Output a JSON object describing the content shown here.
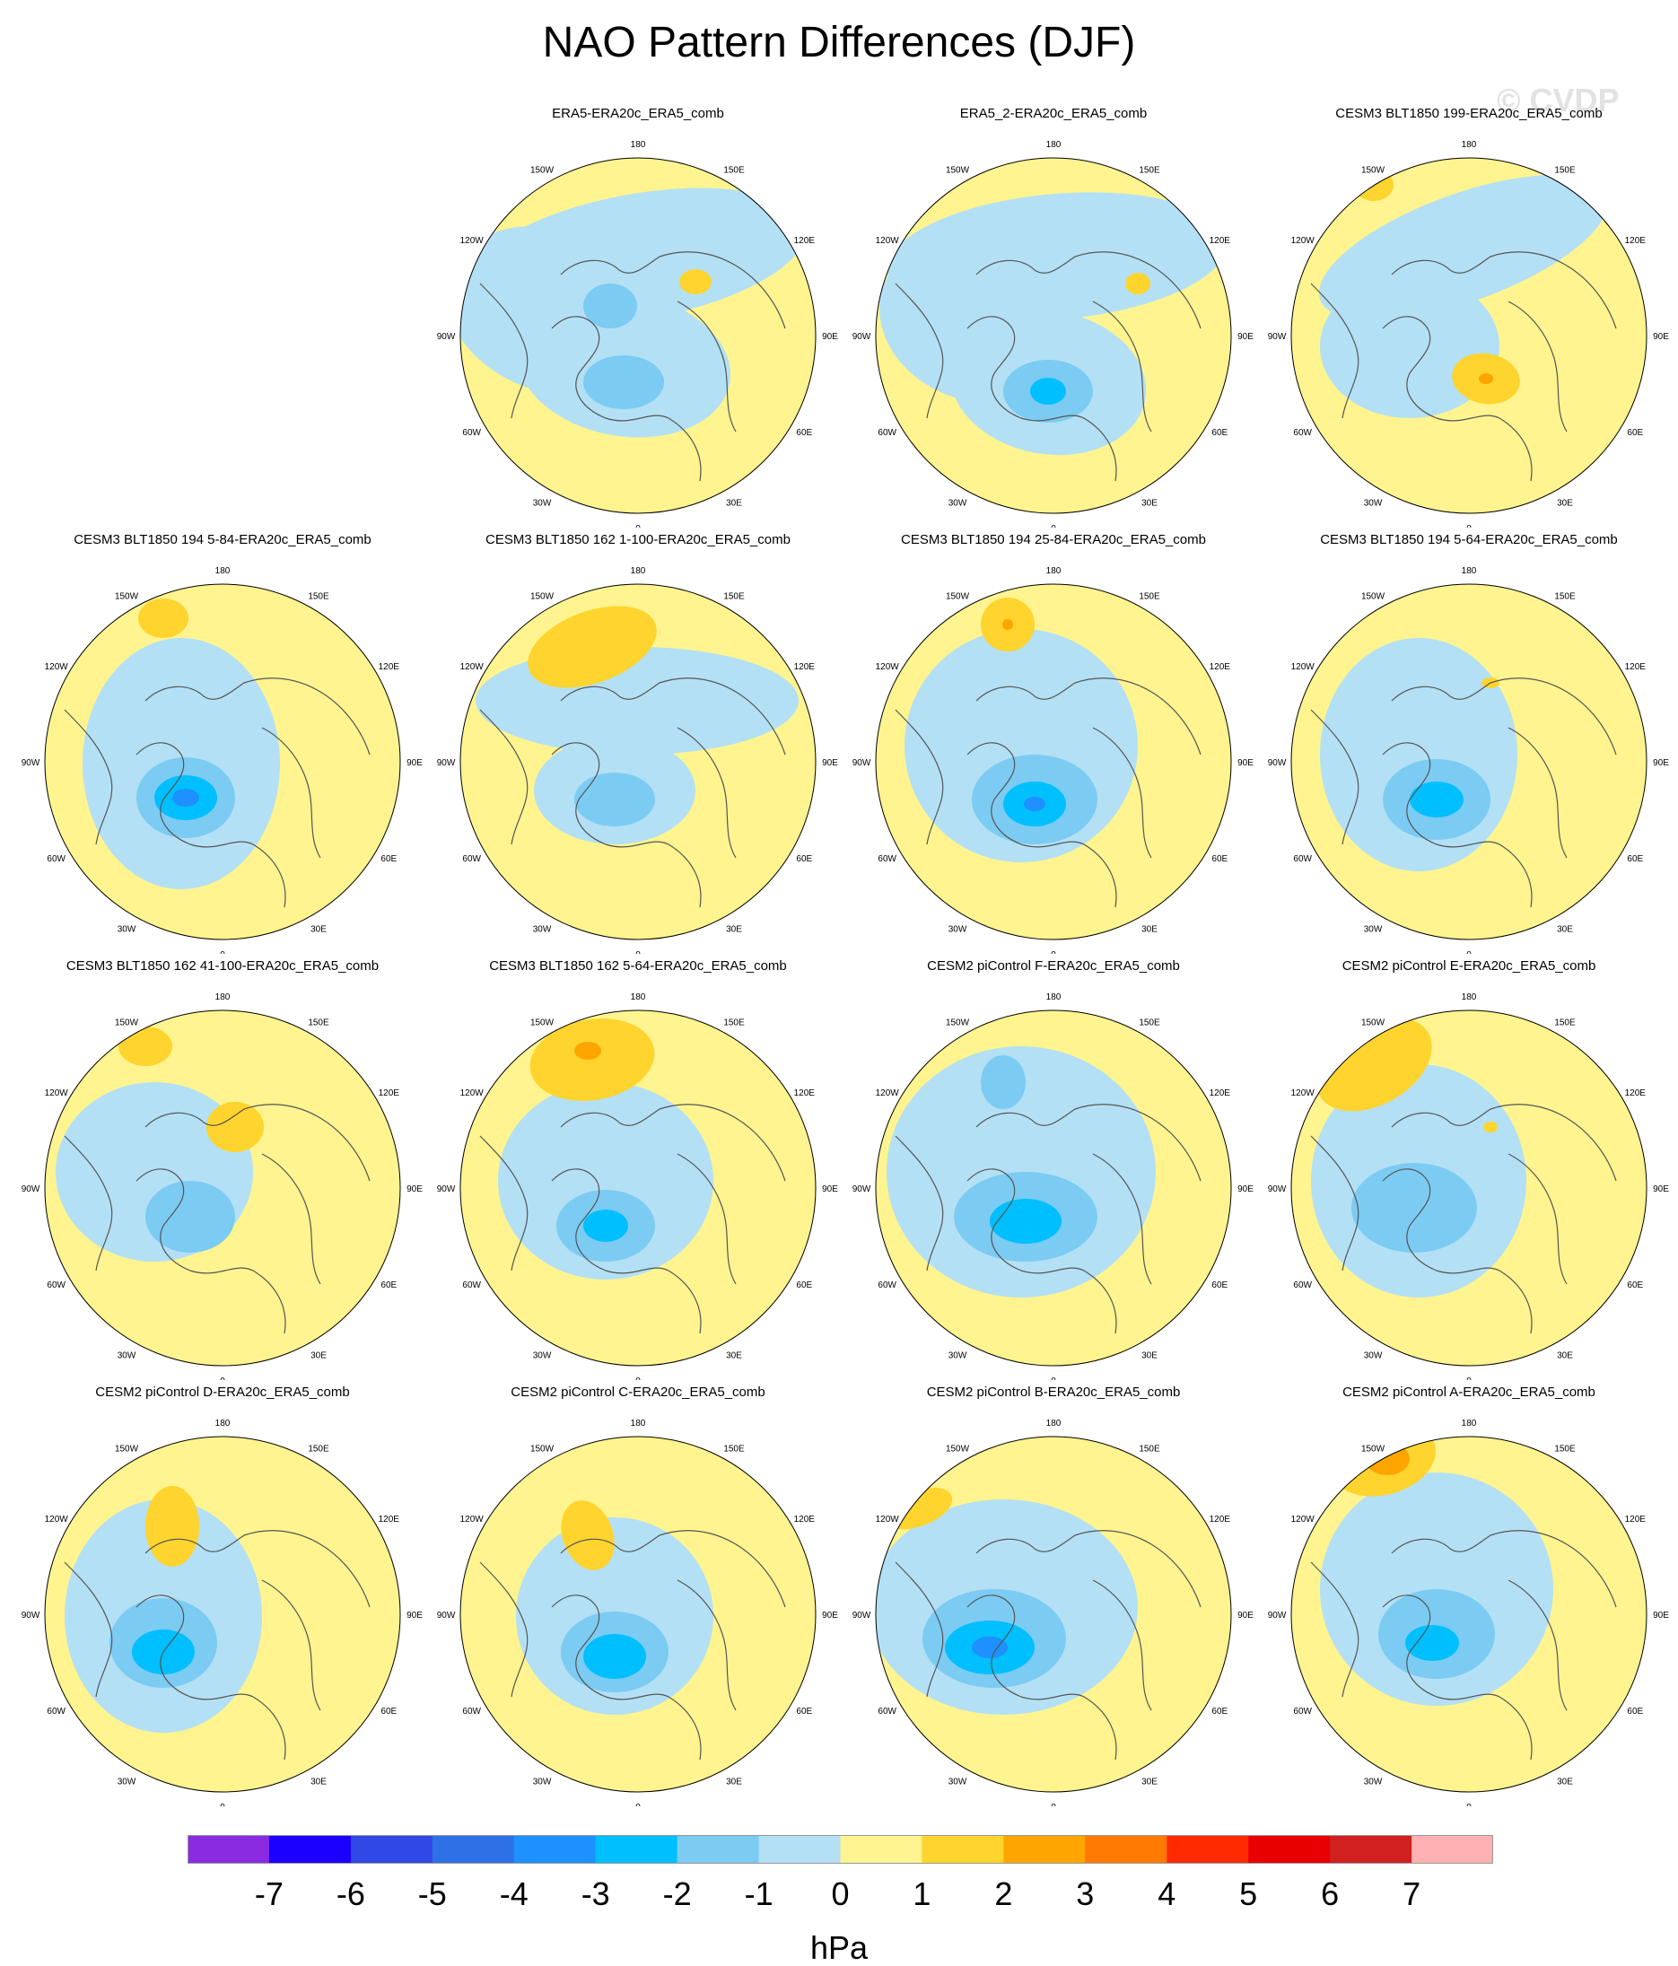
{
  "title": "NAO Pattern Differences (DJF)",
  "watermark": "© CVDP",
  "panels": [
    {
      "title": "ERA5-ERA20c_ERA5_comb",
      "row": 0,
      "col": 1
    },
    {
      "title": "ERA5_2-ERA20c_ERA5_comb",
      "row": 0,
      "col": 2
    },
    {
      "title": "CESM3 BLT1850 199-ERA20c_ERA5_comb",
      "row": 0,
      "col": 3
    },
    {
      "title": "CESM3 BLT1850 194 5-84-ERA20c_ERA5_comb",
      "row": 1,
      "col": 0
    },
    {
      "title": "CESM3 BLT1850 162 1-100-ERA20c_ERA5_comb",
      "row": 1,
      "col": 1
    },
    {
      "title": "CESM3 BLT1850 194 25-84-ERA20c_ERA5_comb",
      "row": 1,
      "col": 2
    },
    {
      "title": "CESM3 BLT1850 194 5-64-ERA20c_ERA5_comb",
      "row": 1,
      "col": 3
    },
    {
      "title": "CESM3 BLT1850 162 41-100-ERA20c_ERA5_comb",
      "row": 2,
      "col": 0
    },
    {
      "title": "CESM3 BLT1850 162 5-64-ERA20c_ERA5_comb",
      "row": 2,
      "col": 1
    },
    {
      "title": "CESM2 piControl F-ERA20c_ERA5_comb",
      "row": 2,
      "col": 2
    },
    {
      "title": "CESM2 piControl E-ERA20c_ERA5_comb",
      "row": 2,
      "col": 3
    },
    {
      "title": "CESM2 piControl D-ERA20c_ERA5_comb",
      "row": 3,
      "col": 0
    },
    {
      "title": "CESM2 piControl C-ERA20c_ERA5_comb",
      "row": 3,
      "col": 1
    },
    {
      "title": "CESM2 piControl B-ERA20c_ERA5_comb",
      "row": 3,
      "col": 2
    },
    {
      "title": "CESM2 piControl A-ERA20c_ERA5_comb",
      "row": 3,
      "col": 3
    }
  ],
  "longitude_labels": [
    "180",
    "150E",
    "120E",
    "90E",
    "60E",
    "30E",
    "0",
    "30W",
    "60W",
    "90W",
    "120W",
    "150W"
  ],
  "colorbar": {
    "units": "hPa",
    "tick_labels": [
      "-7",
      "-6",
      "-5",
      "-4",
      "-3",
      "-2",
      "-1",
      "0",
      "1",
      "2",
      "3",
      "4",
      "5",
      "6",
      "7"
    ],
    "colors": [
      "#8a2be2",
      "#1c00ff",
      "#2f48e6",
      "#2e70e6",
      "#1e90ff",
      "#00bfff",
      "#7ccbf2",
      "#b3e0f5",
      "#fff48f",
      "#ffd42e",
      "#ffa500",
      "#ff7a00",
      "#ff2a00",
      "#e80000",
      "#d02020",
      "#ffb0b0"
    ]
  },
  "fill_colors": {
    "neg1": "#b3e0f5",
    "neg2": "#7ccbf2",
    "neg3": "#00bfff",
    "neg4": "#1e90ff",
    "pos0": "#fff48f",
    "pos1": "#ffd42e",
    "pos2": "#ffa500"
  }
}
